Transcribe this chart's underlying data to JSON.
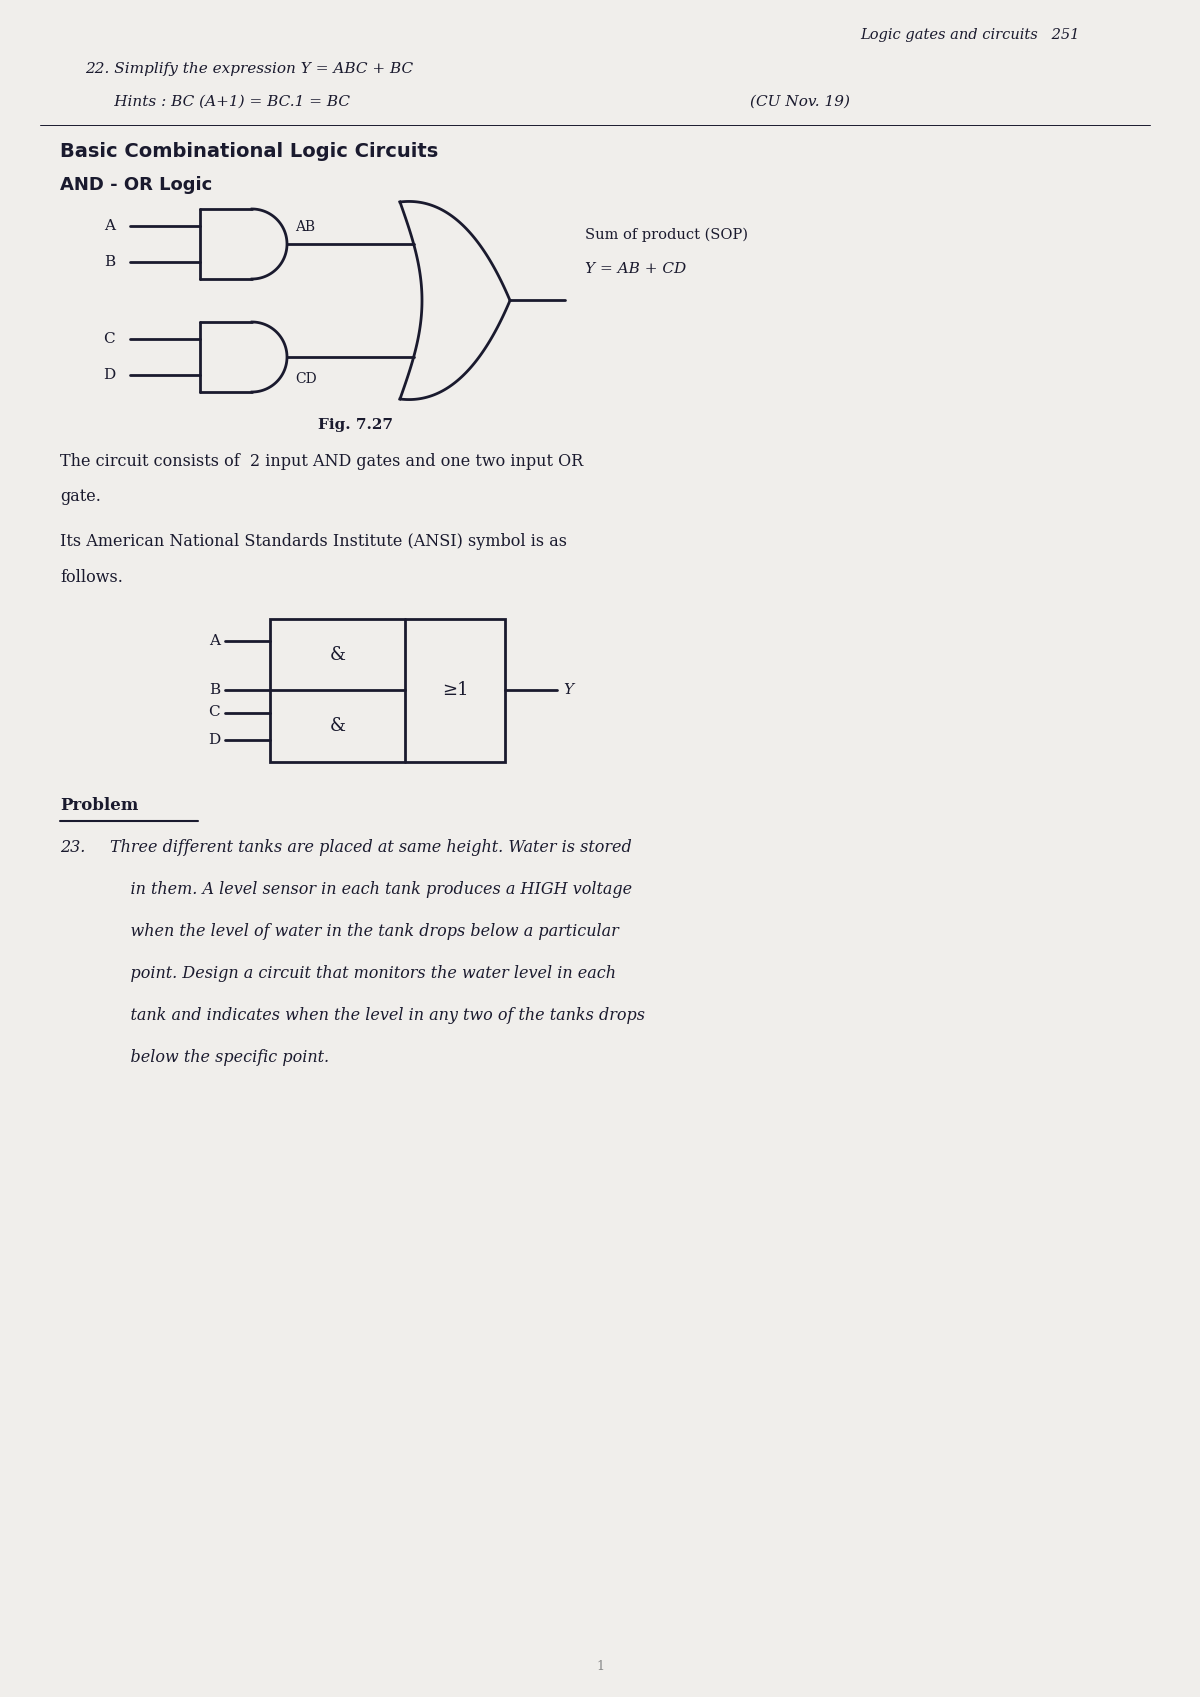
{
  "bg_color": "#f0eeeb",
  "header_text": "Logic gates and circuits   251",
  "line1": "22. Simplify the expression Y = ABC + BC",
  "line2": "      Hints : BC (A+1) = BC.1 = BC",
  "line3": "(CU Nov. 19)",
  "section_title": "Basic Combinational Logic Circuits",
  "subsection": "AND - OR Logic",
  "fig_label": "Fig. 7.27",
  "sop_label": "Sum of product (SOP)",
  "eq_label": "Y = AB + CD",
  "ab_label": "AB",
  "cd_label": "CD",
  "ansi_title1": "Its American National Standards Institute (ANSI) symbol is as",
  "ansi_title2": "follows.",
  "ansi_geq1": "≥1",
  "circuit_desc1": "The circuit consists of  2 input AND gates and one two input OR",
  "circuit_desc2": "gate.",
  "problem_label": "Problem",
  "problem_num": "23.",
  "problem_line1": "Three different tanks are placed at same height. Water is stored",
  "problem_line2": "    in them. A level sensor in each tank produces a HIGH voltage",
  "problem_line3": "    when the level of water in the tank drops below a particular",
  "problem_line4": "    point. Design a circuit that monitors the water level in each",
  "problem_line5": "    tank and indicates when the level in any two of the tanks drops",
  "problem_line6": "    below the specific point.",
  "text_color": "#1a1a2e",
  "line_color": "#1a1a2e"
}
